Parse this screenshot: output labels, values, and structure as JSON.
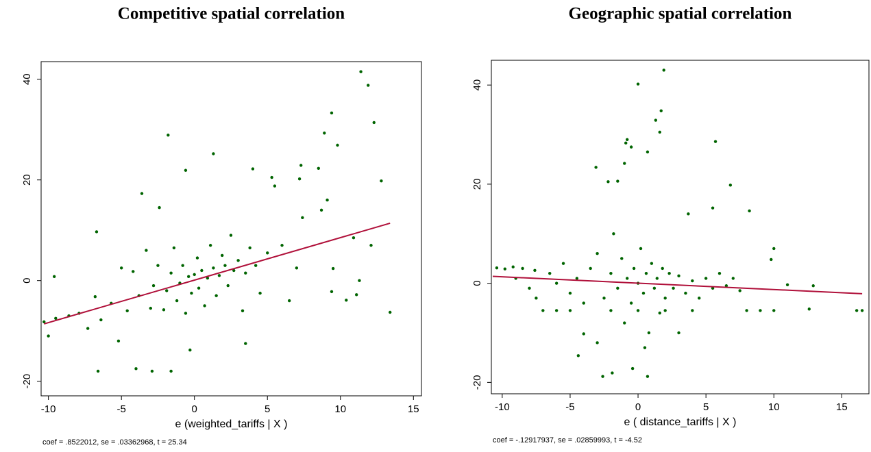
{
  "chart_data": [
    {
      "type": "scatter",
      "title": "Competitive spatial correlation",
      "x_label": "e (weighted_tariffs | X )",
      "note": "coef = .8522012, se = .03362968, t = 25.34",
      "xlim": [
        -10.5,
        15.55
      ],
      "ylim": [
        -22.9,
        43.5
      ],
      "xticks": [
        -10,
        -5,
        0,
        5,
        10,
        15
      ],
      "yticks": [
        -20,
        0,
        20,
        40
      ],
      "points": {
        "color": "#006400",
        "x": [
          -10.3,
          -9.5,
          -8.6,
          -7.9,
          -7.3,
          -6.8,
          -6.4,
          -5.7,
          -5.2,
          -5,
          -4.6,
          -4.2,
          -3.8,
          -3.6,
          -3.3,
          -3,
          -2.8,
          -2.5,
          -2.4,
          -2.1,
          -1.9,
          -1.6,
          -1.4,
          -1.2,
          -1,
          -0.8,
          -0.6,
          -0.4,
          -0.2,
          0,
          0.2,
          0.3,
          0.5,
          0.7,
          0.9,
          1.1,
          1.3,
          1.5,
          1.7,
          1.9,
          2.1,
          2.3,
          2.5,
          2.7,
          3,
          3.3,
          3.5,
          3.8,
          4.2,
          4.5,
          5,
          5.5,
          6,
          6.5,
          7,
          11.4,
          11.9,
          12.3,
          9.4,
          8.9,
          9.8,
          12.8,
          -1.8,
          1.3,
          -0.6,
          4,
          7.3,
          8.5,
          7.2,
          5.3,
          -6.7,
          -9.6,
          -10,
          -6.6,
          -4,
          -2.9,
          -1.6,
          -0.3,
          3.5,
          13.4,
          10.4,
          11.1,
          12.1,
          10.9,
          11.3,
          9.4,
          9.5,
          7.4,
          8.7,
          9.1
        ],
        "y": [
          -8.2,
          -7.5,
          -7,
          -6.5,
          -9.5,
          -3.2,
          -7.8,
          -4.5,
          -12,
          2.5,
          -6,
          1.8,
          -3,
          17.3,
          6,
          -5.5,
          -1,
          3,
          14.5,
          -5.8,
          -2,
          1.5,
          6.5,
          -4,
          -0.5,
          3,
          -6.5,
          0.8,
          -2.5,
          1.2,
          4.5,
          -1.5,
          2,
          -5,
          0.5,
          7,
          2.5,
          -3,
          1,
          5,
          3,
          -1,
          9,
          2,
          4,
          -6,
          1.5,
          6.5,
          3,
          -2.5,
          5.5,
          18.8,
          7,
          -4,
          2.5,
          41.5,
          38.8,
          31.4,
          33.3,
          29.3,
          26.9,
          19.8,
          28.9,
          25.2,
          21.9,
          22.2,
          22.9,
          22.3,
          20.2,
          20.5,
          9.7,
          0.8,
          -11,
          -18,
          -17.5,
          -18,
          -18,
          -13.8,
          -12.5,
          -6.3,
          -3.9,
          -2.8,
          7,
          8.5,
          0,
          -2.2,
          2.4,
          12.5,
          14,
          16
        ]
      },
      "fit": {
        "color": "#b0103a",
        "x": [
          -10.3,
          13.4
        ],
        "y": [
          -8.6,
          11.4
        ]
      }
    },
    {
      "type": "scatter",
      "title": "Geographic spatial correlation",
      "x_label": "e ( distance_tariffs | X )",
      "note": "coef = -.12917937, se = .02859993, t = -4.52",
      "xlim": [
        -10.8,
        17.0
      ],
      "ylim": [
        -22.3,
        45
      ],
      "xticks": [
        -10,
        -5,
        0,
        5,
        10,
        15
      ],
      "yticks": [
        -20,
        0,
        20,
        40
      ],
      "points": {
        "color": "#006400",
        "x": [
          -9,
          -8,
          -7.5,
          -6.5,
          -6,
          -5.5,
          -5,
          -4.5,
          -4,
          -3.5,
          -3,
          -2.5,
          -2,
          -1.8,
          -1.5,
          -1.2,
          -1,
          -0.8,
          -0.5,
          -0.3,
          0,
          0.2,
          0.4,
          0.6,
          0.8,
          1,
          1.2,
          1.4,
          1.6,
          1.8,
          2,
          2.3,
          2.6,
          3,
          3.5,
          4,
          4.5,
          5,
          5.5,
          6,
          6.5,
          7,
          7.5,
          0,
          -2,
          2,
          4,
          -3,
          3,
          0.5,
          0,
          1.9,
          1.7,
          1.3,
          1.6,
          5.7,
          -0.8,
          -0.9,
          -0.5,
          0.7,
          -3.1,
          -1,
          -1.5,
          -2.2,
          6.8,
          8.2,
          5.5,
          3.7,
          -2.6,
          -1.9,
          -0.4,
          0.7,
          -4.4,
          -4,
          16.1,
          16.5,
          12.6,
          12.9,
          11,
          10,
          9.8,
          -10.4,
          -9.8,
          -9.2,
          -8.5,
          -7.6,
          -7,
          -6,
          -5,
          8,
          9,
          10
        ],
        "y": [
          1,
          -1,
          -3,
          2,
          0,
          4,
          -2,
          1,
          -4,
          3,
          6,
          -3,
          2,
          10,
          -1,
          5,
          -8,
          1,
          -4,
          3,
          0,
          7,
          -2,
          2,
          -10,
          4,
          -1,
          1,
          -6,
          3,
          -3,
          2,
          -1,
          1.5,
          -2,
          0.5,
          -3,
          1,
          -1,
          2,
          -0.5,
          1,
          -1.5,
          -5.5,
          -5.5,
          -5.5,
          -5.5,
          -12,
          -10,
          -13,
          40.2,
          43,
          34.8,
          32.9,
          30.5,
          28.6,
          29,
          28.3,
          27.5,
          26.5,
          23.4,
          24.2,
          20.6,
          20.5,
          19.8,
          14.6,
          15.2,
          14,
          -18.8,
          -18.1,
          -17.2,
          -18.8,
          -14.6,
          -10.2,
          -5.5,
          -5.5,
          -5.2,
          -0.5,
          -0.3,
          7,
          4.8,
          3.1,
          2.9,
          3.3,
          3,
          2.6,
          -5.5,
          -5.5,
          -5.5,
          -5.5,
          -5.5,
          -5.5
        ]
      },
      "fit": {
        "color": "#b0103a",
        "x": [
          -10.7,
          16.5
        ],
        "y": [
          1.4,
          -2.1
        ]
      }
    }
  ]
}
